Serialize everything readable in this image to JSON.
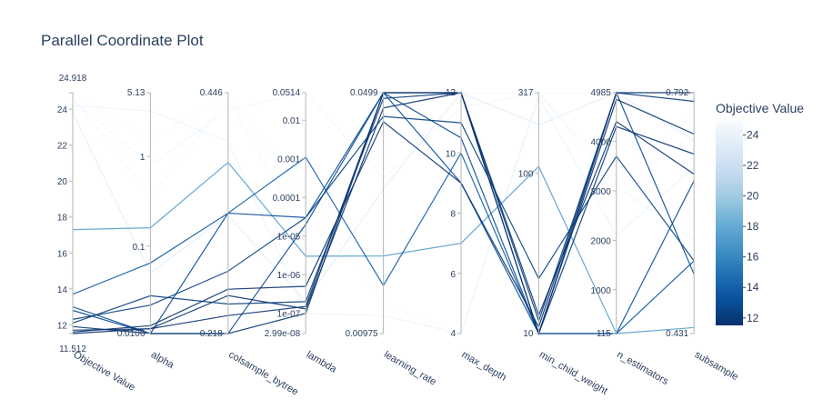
{
  "chart_data": {
    "type": "parallel_coordinates",
    "title": "Parallel Coordinate Plot",
    "colorbar": {
      "title": "Objective Value",
      "ticks": [
        "24",
        "22",
        "20",
        "18",
        "16",
        "14",
        "12"
      ],
      "tick_values": [
        24,
        22,
        20,
        18,
        16,
        14,
        12
      ],
      "range": [
        11.512,
        24.918
      ],
      "colorscale": [
        "#08306b",
        "#08519c",
        "#2171b5",
        "#4292c6",
        "#6baed6",
        "#9ecae1",
        "#c6dbef",
        "#deebf7",
        "#f7fbff"
      ]
    },
    "dimensions": [
      {
        "label": "Objective Value",
        "scale": "linear",
        "range": [
          11.512,
          24.918
        ],
        "range_labels": [
          "11.512",
          "24.918"
        ],
        "ticks": [
          {
            "v": 12,
            "t": "12"
          },
          {
            "v": 14,
            "t": "14"
          },
          {
            "v": 16,
            "t": "16"
          },
          {
            "v": 18,
            "t": "18"
          },
          {
            "v": 20,
            "t": "20"
          },
          {
            "v": 22,
            "t": "22"
          },
          {
            "v": 24,
            "t": "24"
          }
        ]
      },
      {
        "label": "alpha",
        "scale": "log",
        "range": [
          0.0106,
          5.13
        ],
        "range_labels": [
          "0.0106",
          "5.13"
        ],
        "ticks": [
          {
            "v": 0.1,
            "t": "0.1"
          },
          {
            "v": 1,
            "t": "1"
          }
        ]
      },
      {
        "label": "colsample_bytree",
        "scale": "linear",
        "range": [
          0.218,
          0.446
        ],
        "range_labels": [
          "0.218",
          "0.446"
        ],
        "ticks": []
      },
      {
        "label": "lambda",
        "scale": "log",
        "range": [
          2.99e-08,
          0.0514
        ],
        "range_labels": [
          "2.99e-08",
          "0.0514"
        ],
        "ticks": [
          {
            "v": 1e-07,
            "t": "1e-07"
          },
          {
            "v": 1e-06,
            "t": "1e-06"
          },
          {
            "v": 1e-05,
            "t": "1e-05"
          },
          {
            "v": 0.0001,
            "t": "0.0001"
          },
          {
            "v": 0.001,
            "t": "0.001"
          },
          {
            "v": 0.01,
            "t": "0.01"
          }
        ]
      },
      {
        "label": "learning_rate",
        "scale": "log",
        "range": [
          0.00975,
          0.0499
        ],
        "range_labels": [
          "0.00975",
          "0.0499"
        ],
        "ticks": [
          {
            "v": 0.01,
            "t": "0.01"
          }
        ]
      },
      {
        "label": "max_depth",
        "scale": "linear",
        "range": [
          4,
          12
        ],
        "range_labels": [
          "4",
          "12"
        ],
        "ticks": [
          {
            "v": 6,
            "t": "6"
          },
          {
            "v": 8,
            "t": "8"
          },
          {
            "v": 10,
            "t": "10"
          },
          {
            "v": 12,
            "t": "12"
          }
        ]
      },
      {
        "label": "min_child_weight",
        "scale": "log",
        "range": [
          10,
          317
        ],
        "range_labels": [
          "10",
          "317"
        ],
        "ticks": [
          {
            "v": 100,
            "t": "100"
          }
        ]
      },
      {
        "label": "n_estimators",
        "scale": "linear",
        "range": [
          115,
          4985
        ],
        "range_labels": [
          "115",
          "4985"
        ],
        "ticks": [
          {
            "v": 1000,
            "t": "1000"
          },
          {
            "v": 2000,
            "t": "2000"
          },
          {
            "v": 3000,
            "t": "3000"
          },
          {
            "v": 4000,
            "t": "4000"
          }
        ]
      },
      {
        "label": "subsample",
        "scale": "linear",
        "range": [
          0.431,
          0.792
        ],
        "range_labels": [
          "0.431",
          "0.792"
        ],
        "ticks": []
      }
    ],
    "lines": [
      [
        24.9,
        1.5,
        0.446,
        0.0001,
        0.012,
        4,
        317,
        3300,
        0.76
      ],
      [
        24.7,
        0.35,
        0.44,
        1e-05,
        0.0499,
        12,
        317,
        4985,
        0.792
      ],
      [
        24.5,
        0.8,
        0.43,
        0.0514,
        0.028,
        11.5,
        317,
        3100,
        0.57
      ],
      [
        24.2,
        3.2,
        0.4,
        1e-07,
        0.011,
        4,
        300,
        2100,
        0.68
      ],
      [
        23.8,
        0.05,
        0.33,
        2e-07,
        0.026,
        12,
        200,
        4985,
        0.72
      ],
      [
        17.3,
        0.16,
        0.38,
        3e-06,
        0.0165,
        7,
        110,
        115,
        0.44
      ],
      [
        13.7,
        0.065,
        0.332,
        0.0011,
        0.0135,
        10,
        10,
        115,
        0.54
      ],
      [
        13.0,
        0.0106,
        0.332,
        3e-05,
        0.0499,
        9,
        10,
        115,
        0.66
      ],
      [
        12.8,
        0.0106,
        0.218,
        2e-05,
        0.0499,
        10.5,
        10,
        4985,
        0.52
      ],
      [
        12.3,
        0.022,
        0.277,
        3e-05,
        0.0425,
        11,
        22,
        3700,
        0.54
      ],
      [
        12.1,
        0.028,
        0.246,
        2e-07,
        0.048,
        12,
        12,
        4985,
        0.779
      ],
      [
        11.9,
        0.0106,
        0.218,
        1e-07,
        0.0499,
        12,
        10,
        4300,
        0.7
      ],
      [
        11.7,
        0.012,
        0.254,
        1.3e-07,
        0.045,
        12,
        13,
        4400,
        0.67
      ],
      [
        11.6,
        0.013,
        0.26,
        5e-07,
        0.041,
        9,
        11,
        4985,
        0.792
      ],
      [
        11.512,
        0.012,
        0.235,
        1.5e-07,
        0.0499,
        12,
        10,
        4850,
        0.73
      ]
    ]
  }
}
